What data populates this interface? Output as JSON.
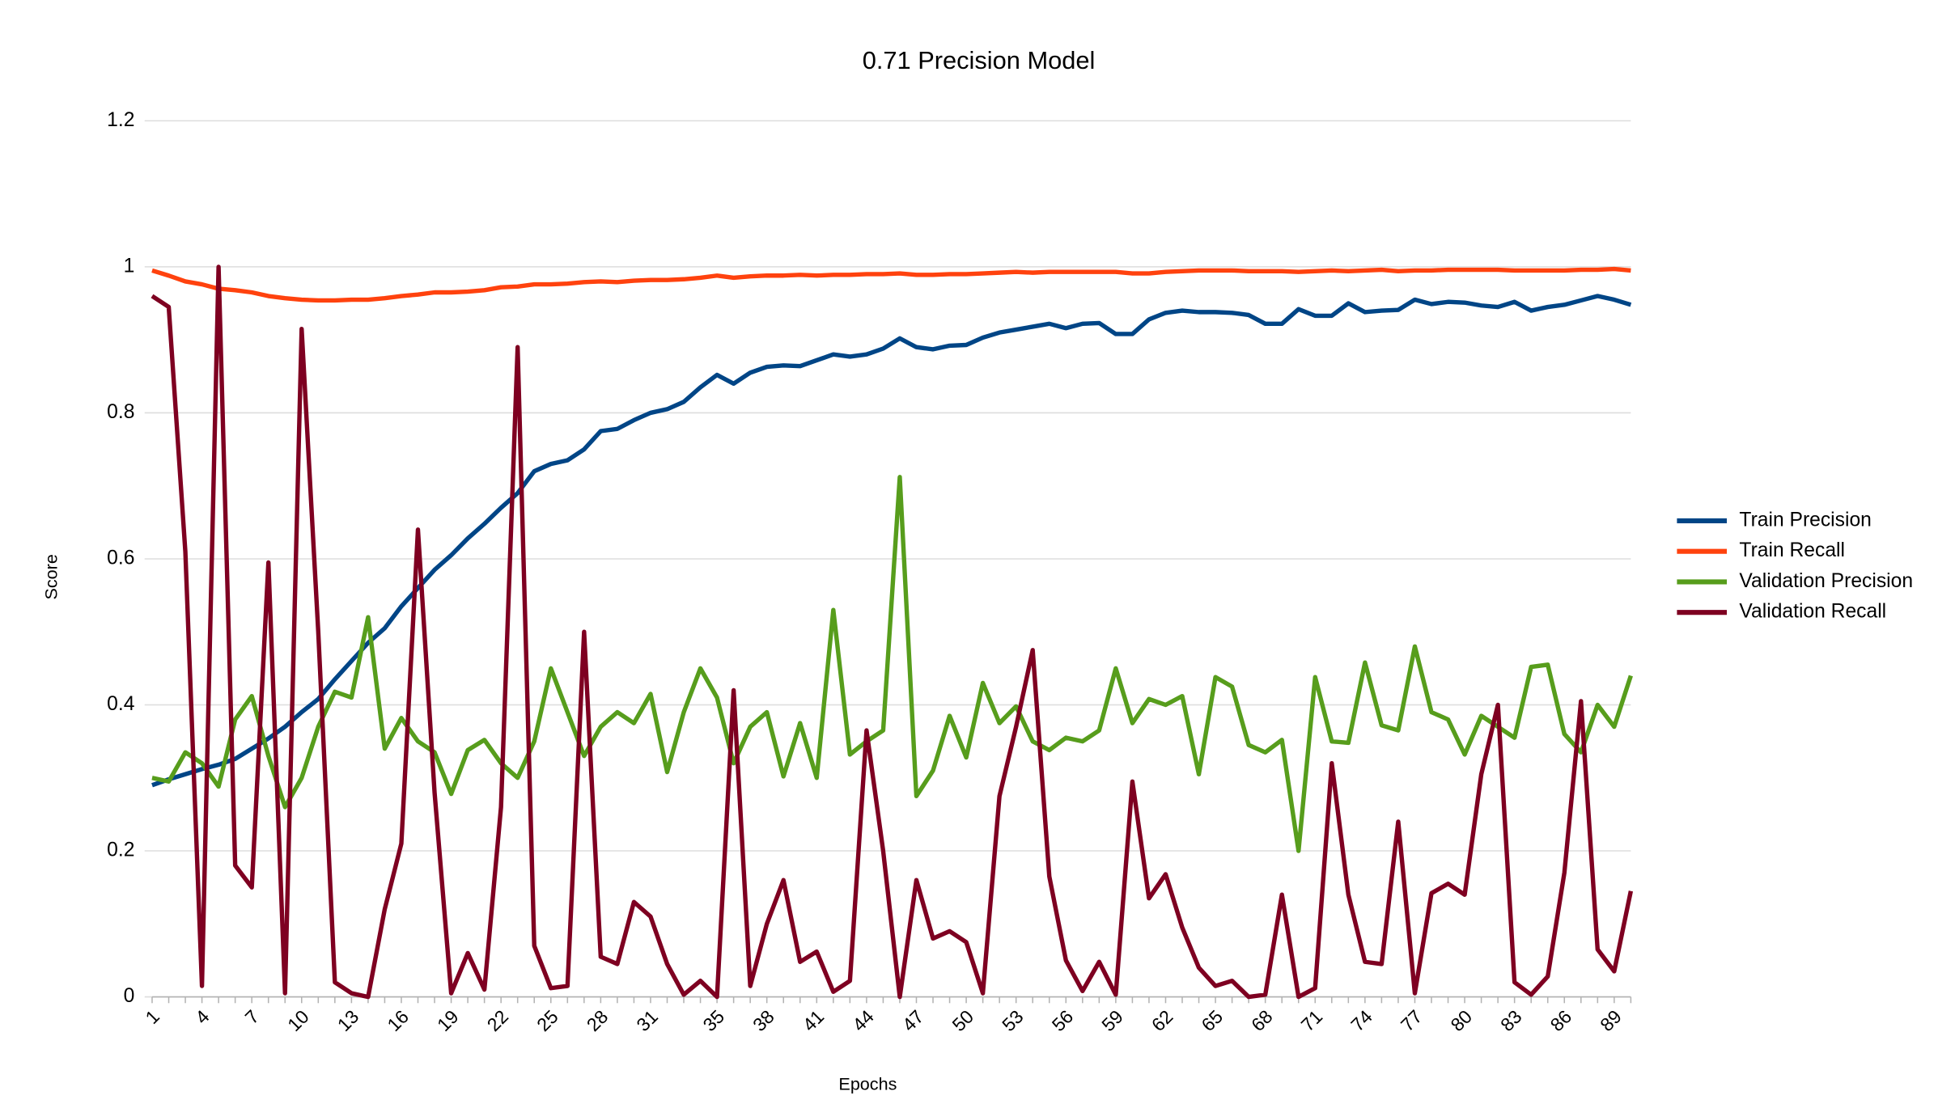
{
  "chart_data": {
    "type": "line",
    "title": "0.71 Precision Model",
    "x_label": "Epochs",
    "y_label": "Score",
    "categories": [
      "1",
      null,
      null,
      "4",
      null,
      null,
      "7",
      null,
      null,
      "10",
      null,
      null,
      "13",
      null,
      null,
      "16",
      null,
      null,
      "19",
      null,
      null,
      "22",
      null,
      null,
      "25",
      null,
      null,
      "28",
      null,
      null,
      "31",
      null,
      null,
      null,
      "35",
      null,
      null,
      "38",
      null,
      null,
      "41",
      null,
      null,
      "44",
      null,
      null,
      "47",
      null,
      null,
      "50",
      null,
      null,
      "53",
      null,
      null,
      "56",
      null,
      null,
      "59",
      null,
      null,
      "62",
      null,
      null,
      "65",
      null,
      null,
      "68",
      null,
      null,
      "71",
      null,
      null,
      "74",
      null,
      null,
      "77",
      null,
      null,
      "80",
      null,
      null,
      "83",
      null,
      null,
      "86",
      null,
      null,
      "89",
      null
    ],
    "ylim": [
      0,
      1.2
    ],
    "yticks": [
      0,
      0.2,
      0.4,
      0.6,
      0.8,
      1,
      1.2
    ],
    "grid": true,
    "legend": "right",
    "series": [
      {
        "name": "Train Precision",
        "color": "#004586",
        "values": [
          0.29,
          0.298,
          0.305,
          0.312,
          0.318,
          0.326,
          0.34,
          0.354,
          0.37,
          0.39,
          0.408,
          0.435,
          0.46,
          0.485,
          0.505,
          0.535,
          0.56,
          0.585,
          0.605,
          0.628,
          0.648,
          0.67,
          0.69,
          0.72,
          0.73,
          0.735,
          0.75,
          0.775,
          0.778,
          0.79,
          0.8,
          0.805,
          0.815,
          0.835,
          0.852,
          0.84,
          0.855,
          0.863,
          0.865,
          0.864,
          0.872,
          0.88,
          0.877,
          0.88,
          0.888,
          0.902,
          0.89,
          0.887,
          0.892,
          0.893,
          0.903,
          0.91,
          0.914,
          0.918,
          0.922,
          0.916,
          0.922,
          0.923,
          0.908,
          0.908,
          0.928,
          0.937,
          0.94,
          0.938,
          0.938,
          0.937,
          0.934,
          0.922,
          0.922,
          0.942,
          0.933,
          0.933,
          0.95,
          0.938,
          0.94,
          0.941,
          0.955,
          0.949,
          0.952,
          0.951,
          0.947,
          0.945,
          0.952,
          0.94,
          0.945,
          0.948,
          0.954,
          0.96,
          0.955,
          0.948
        ]
      },
      {
        "name": "Train Recall",
        "color": "#ff420e",
        "values": [
          0.995,
          0.988,
          0.98,
          0.976,
          0.97,
          0.968,
          0.965,
          0.96,
          0.957,
          0.955,
          0.954,
          0.954,
          0.955,
          0.955,
          0.957,
          0.96,
          0.962,
          0.965,
          0.965,
          0.966,
          0.968,
          0.972,
          0.973,
          0.976,
          0.976,
          0.977,
          0.979,
          0.98,
          0.979,
          0.981,
          0.982,
          0.982,
          0.983,
          0.985,
          0.988,
          0.985,
          0.987,
          0.988,
          0.988,
          0.989,
          0.988,
          0.989,
          0.989,
          0.99,
          0.99,
          0.991,
          0.989,
          0.989,
          0.99,
          0.99,
          0.991,
          0.992,
          0.993,
          0.992,
          0.993,
          0.993,
          0.993,
          0.993,
          0.993,
          0.991,
          0.991,
          0.993,
          0.994,
          0.995,
          0.995,
          0.995,
          0.994,
          0.994,
          0.994,
          0.993,
          0.994,
          0.995,
          0.994,
          0.995,
          0.996,
          0.994,
          0.995,
          0.995,
          0.996,
          0.996,
          0.996,
          0.996,
          0.995,
          0.995,
          0.995,
          0.995,
          0.996,
          0.996,
          0.997,
          0.995
        ]
      },
      {
        "name": "Validation Precision",
        "color": "#579d1c",
        "values": [
          0.3,
          0.295,
          0.335,
          0.32,
          0.288,
          0.38,
          0.412,
          0.33,
          0.26,
          0.3,
          0.37,
          0.418,
          0.41,
          0.52,
          0.34,
          0.382,
          0.35,
          0.335,
          0.278,
          0.338,
          0.352,
          0.32,
          0.3,
          0.35,
          0.45,
          0.39,
          0.33,
          0.37,
          0.39,
          0.375,
          0.415,
          0.308,
          0.39,
          0.45,
          0.41,
          0.32,
          0.37,
          0.39,
          0.302,
          0.375,
          0.3,
          0.53,
          0.332,
          0.35,
          0.365,
          0.712,
          0.275,
          0.31,
          0.385,
          0.328,
          0.43,
          0.375,
          0.398,
          0.35,
          0.338,
          0.355,
          0.35,
          0.365,
          0.45,
          0.375,
          0.408,
          0.4,
          0.412,
          0.305,
          0.438,
          0.425,
          0.345,
          0.335,
          0.352,
          0.2,
          0.438,
          0.35,
          0.348,
          0.458,
          0.372,
          0.365,
          0.48,
          0.39,
          0.38,
          0.332,
          0.385,
          0.37,
          0.355,
          0.452,
          0.455,
          0.36,
          0.335,
          0.4,
          0.37,
          0.44
        ]
      },
      {
        "name": "Validation Recall",
        "color": "#7e0021",
        "values": [
          0.96,
          0.945,
          0.61,
          0.015,
          1.0,
          0.18,
          0.15,
          0.595,
          0.005,
          0.915,
          0.5,
          0.02,
          0.005,
          0.0,
          0.12,
          0.21,
          0.64,
          0.28,
          0.005,
          0.06,
          0.01,
          0.26,
          0.89,
          0.07,
          0.012,
          0.015,
          0.5,
          0.055,
          0.045,
          0.13,
          0.11,
          0.045,
          0.003,
          0.022,
          0.0,
          0.42,
          0.015,
          0.1,
          0.16,
          0.048,
          0.062,
          0.007,
          0.022,
          0.365,
          0.2,
          0.0,
          0.16,
          0.08,
          0.09,
          0.075,
          0.005,
          0.275,
          0.37,
          0.475,
          0.165,
          0.05,
          0.008,
          0.048,
          0.003,
          0.295,
          0.135,
          0.168,
          0.095,
          0.04,
          0.015,
          0.022,
          0.0,
          0.003,
          0.14,
          0.0,
          0.012,
          0.32,
          0.14,
          0.048,
          0.045,
          0.24,
          0.005,
          0.142,
          0.155,
          0.14,
          0.305,
          0.4,
          0.02,
          0.003,
          0.028,
          0.17,
          0.405,
          0.065,
          0.035,
          0.145
        ]
      }
    ]
  }
}
